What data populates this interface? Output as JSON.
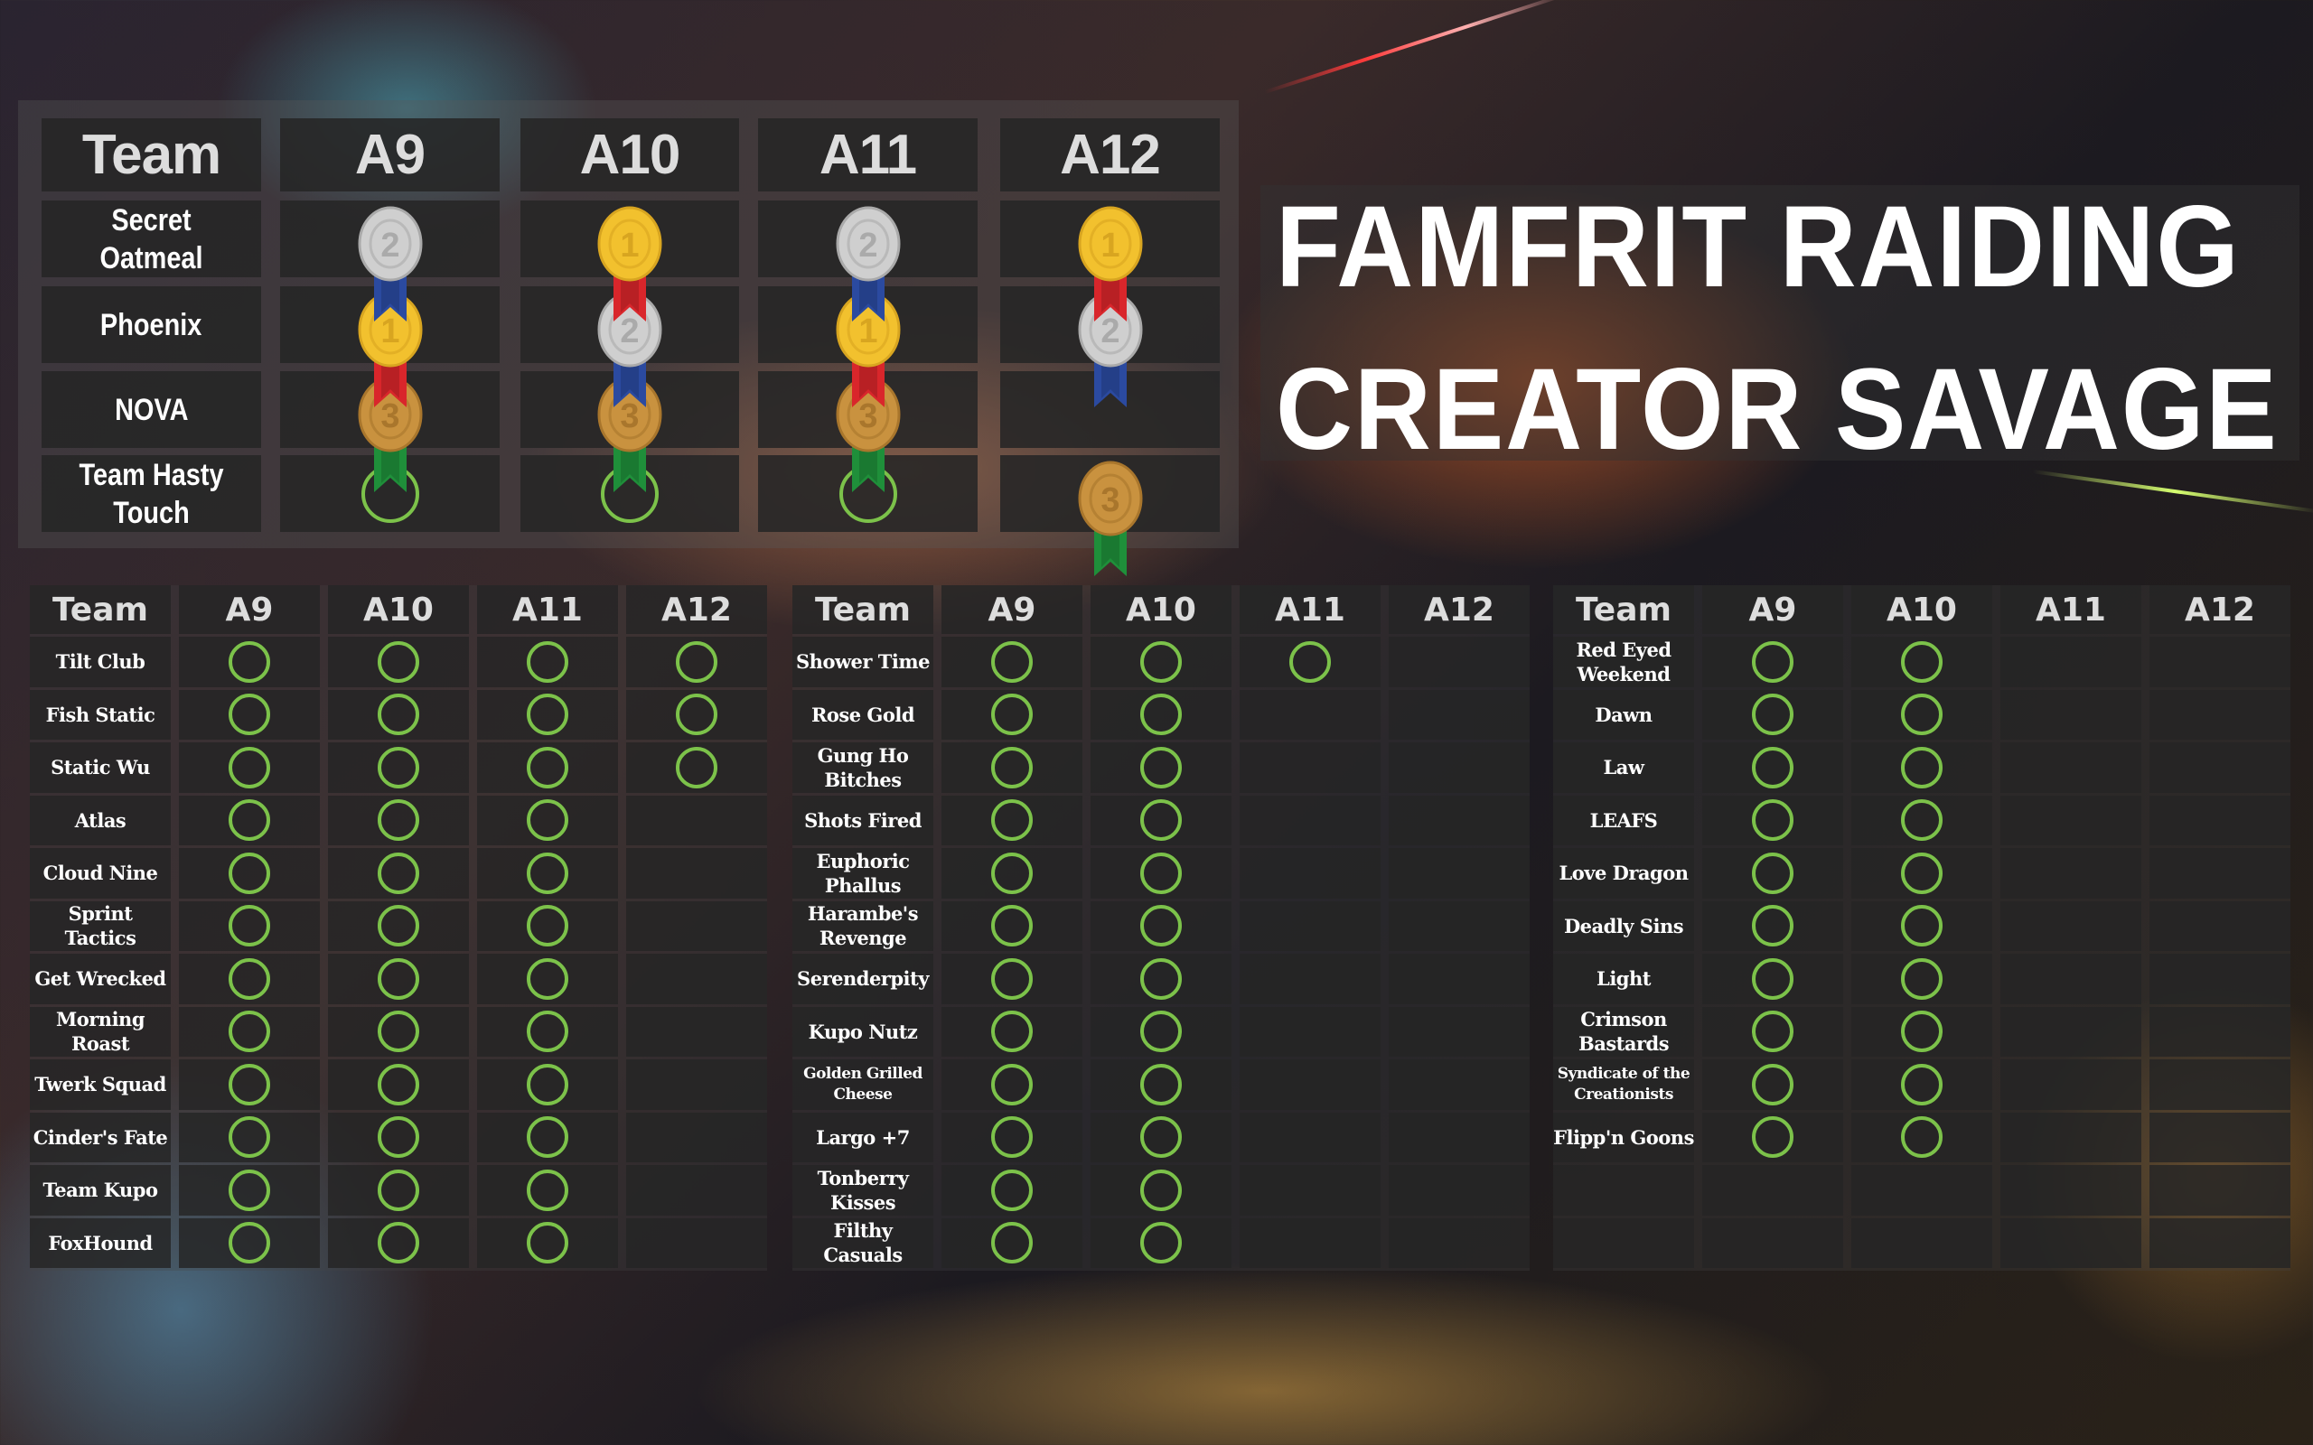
{
  "title": {
    "line1": "FAMFRIT RAIDING",
    "line2": "CREATOR SAVAGE"
  },
  "columns": [
    "Team",
    "A9",
    "A10",
    "A11",
    "A12"
  ],
  "colors": {
    "cleared_ring": "#7cc24a",
    "gold": "#f2c12e",
    "silver": "#cfcfcf",
    "bronze": "#c9923f",
    "ribbon_gold": "#d9262b",
    "ribbon_silver": "#2b4aa0",
    "ribbon_bronze": "#1f8f3a"
  },
  "podium": {
    "rows": [
      {
        "team": "Secret Oatmeal",
        "results": [
          "2",
          "1",
          "2",
          "1"
        ]
      },
      {
        "team": "Phoenix",
        "results": [
          "1",
          "2",
          "1",
          "2"
        ]
      },
      {
        "team": "NOVA",
        "results": [
          "3",
          "3",
          "3",
          ""
        ]
      },
      {
        "team": "Team Hasty Touch",
        "results": [
          "cleared",
          "cleared",
          "cleared",
          "3"
        ]
      }
    ]
  },
  "tables": [
    {
      "rows": [
        {
          "team": "Tilt Club",
          "cleared": [
            true,
            true,
            true,
            true
          ]
        },
        {
          "team": "Fish Static",
          "cleared": [
            true,
            true,
            true,
            true
          ]
        },
        {
          "team": "Static Wu",
          "cleared": [
            true,
            true,
            true,
            true
          ]
        },
        {
          "team": "Atlas",
          "cleared": [
            true,
            true,
            true,
            false
          ]
        },
        {
          "team": "Cloud Nine",
          "cleared": [
            true,
            true,
            true,
            false
          ]
        },
        {
          "team": "Sprint Tactics",
          "cleared": [
            true,
            true,
            true,
            false
          ]
        },
        {
          "team": "Get Wrecked",
          "cleared": [
            true,
            true,
            true,
            false
          ]
        },
        {
          "team": "Morning Roast",
          "cleared": [
            true,
            true,
            true,
            false
          ]
        },
        {
          "team": "Twerk Squad",
          "cleared": [
            true,
            true,
            true,
            false
          ]
        },
        {
          "team": "Cinder's Fate",
          "cleared": [
            true,
            true,
            true,
            false
          ]
        },
        {
          "team": "Team Kupo",
          "cleared": [
            true,
            true,
            true,
            false
          ]
        },
        {
          "team": "FoxHound",
          "cleared": [
            true,
            true,
            true,
            false
          ]
        }
      ]
    },
    {
      "rows": [
        {
          "team": "Shower Time",
          "cleared": [
            true,
            true,
            true,
            false
          ]
        },
        {
          "team": "Rose Gold",
          "cleared": [
            true,
            true,
            false,
            false
          ]
        },
        {
          "team": "Gung Ho Bitches",
          "cleared": [
            true,
            true,
            false,
            false
          ]
        },
        {
          "team": "Shots Fired",
          "cleared": [
            true,
            true,
            false,
            false
          ]
        },
        {
          "team": "Euphoric Phallus",
          "cleared": [
            true,
            true,
            false,
            false
          ]
        },
        {
          "team": "Harambe's Revenge",
          "cleared": [
            true,
            true,
            false,
            false
          ]
        },
        {
          "team": "Serenderpity",
          "cleared": [
            true,
            true,
            false,
            false
          ]
        },
        {
          "team": "Kupo Nutz",
          "cleared": [
            true,
            true,
            false,
            false
          ]
        },
        {
          "team": "Golden Grilled Cheese",
          "cleared": [
            true,
            true,
            false,
            false
          ]
        },
        {
          "team": "Largo +7",
          "cleared": [
            true,
            true,
            false,
            false
          ]
        },
        {
          "team": "Tonberry Kisses",
          "cleared": [
            true,
            true,
            false,
            false
          ]
        },
        {
          "team": "Filthy Casuals",
          "cleared": [
            true,
            true,
            false,
            false
          ]
        }
      ]
    },
    {
      "rows": [
        {
          "team": "Red Eyed Weekend",
          "cleared": [
            true,
            true,
            false,
            false
          ]
        },
        {
          "team": "Dawn",
          "cleared": [
            true,
            true,
            false,
            false
          ]
        },
        {
          "team": "Law",
          "cleared": [
            true,
            true,
            false,
            false
          ]
        },
        {
          "team": "LEAFS",
          "cleared": [
            true,
            true,
            false,
            false
          ]
        },
        {
          "team": "Love Dragon",
          "cleared": [
            true,
            true,
            false,
            false
          ]
        },
        {
          "team": "Deadly Sins",
          "cleared": [
            true,
            true,
            false,
            false
          ]
        },
        {
          "team": "Light",
          "cleared": [
            true,
            true,
            false,
            false
          ]
        },
        {
          "team": "Crimson Bastards",
          "cleared": [
            true,
            true,
            false,
            false
          ]
        },
        {
          "team": "Syndicate of the Creationists",
          "cleared": [
            true,
            true,
            false,
            false
          ]
        },
        {
          "team": "Flipp'n Goons",
          "cleared": [
            true,
            true,
            false,
            false
          ]
        },
        {
          "team": "",
          "cleared": [
            false,
            false,
            false,
            false
          ]
        },
        {
          "team": "",
          "cleared": [
            false,
            false,
            false,
            false
          ]
        }
      ]
    }
  ]
}
